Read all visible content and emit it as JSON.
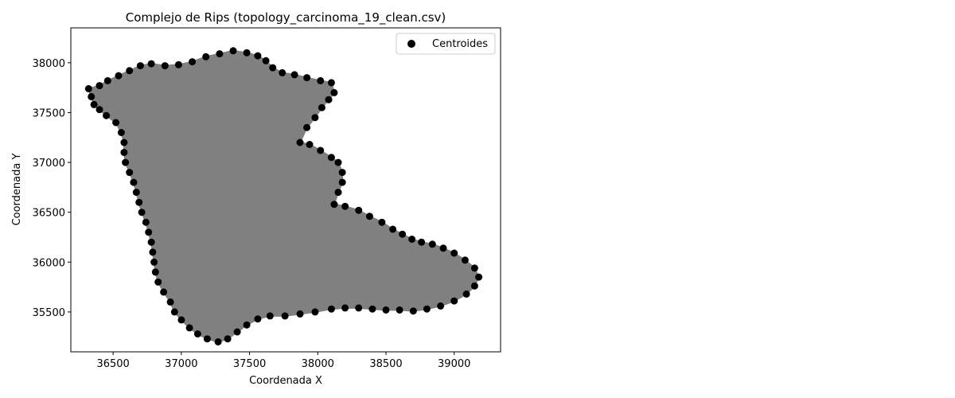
{
  "chart_data": {
    "type": "scatter",
    "title": "Complejo de Rips (topology_carcinoma_19_clean.csv)",
    "xlabel": "Coordenada X",
    "ylabel": "Coordenada Y",
    "xlim": [
      36190,
      39340
    ],
    "ylim": [
      35100,
      38350
    ],
    "xticks": [
      36500,
      37000,
      37500,
      38000,
      38500,
      39000
    ],
    "yticks": [
      35500,
      36000,
      36500,
      37000,
      37500,
      38000
    ],
    "grid": false,
    "legend": {
      "position": "top-right",
      "entries": [
        "Centroides"
      ]
    },
    "fill_color": "#808080",
    "point_color": "#000000",
    "series": [
      {
        "name": "Centroides",
        "points": [
          [
            36320,
            37740
          ],
          [
            36340,
            37660
          ],
          [
            36360,
            37580
          ],
          [
            36400,
            37530
          ],
          [
            36450,
            37470
          ],
          [
            36520,
            37400
          ],
          [
            36560,
            37300
          ],
          [
            36580,
            37200
          ],
          [
            36580,
            37100
          ],
          [
            36590,
            37000
          ],
          [
            36620,
            36900
          ],
          [
            36650,
            36800
          ],
          [
            36670,
            36700
          ],
          [
            36690,
            36600
          ],
          [
            36710,
            36500
          ],
          [
            36740,
            36400
          ],
          [
            36760,
            36300
          ],
          [
            36780,
            36200
          ],
          [
            36790,
            36100
          ],
          [
            36800,
            36000
          ],
          [
            36810,
            35900
          ],
          [
            36830,
            35800
          ],
          [
            36870,
            35700
          ],
          [
            36920,
            35600
          ],
          [
            36950,
            35500
          ],
          [
            37000,
            35420
          ],
          [
            37060,
            35340
          ],
          [
            37120,
            35280
          ],
          [
            37190,
            35230
          ],
          [
            37270,
            35200
          ],
          [
            37340,
            35230
          ],
          [
            37410,
            35300
          ],
          [
            37480,
            35370
          ],
          [
            37560,
            35430
          ],
          [
            37650,
            35460
          ],
          [
            37760,
            35460
          ],
          [
            37870,
            35480
          ],
          [
            37980,
            35500
          ],
          [
            38100,
            35530
          ],
          [
            38200,
            35540
          ],
          [
            38300,
            35540
          ],
          [
            38400,
            35530
          ],
          [
            38500,
            35520
          ],
          [
            38600,
            35520
          ],
          [
            38700,
            35510
          ],
          [
            38800,
            35530
          ],
          [
            38900,
            35560
          ],
          [
            39000,
            35610
          ],
          [
            39090,
            35680
          ],
          [
            39150,
            35760
          ],
          [
            39180,
            35850
          ],
          [
            39150,
            35940
          ],
          [
            39080,
            36020
          ],
          [
            39000,
            36090
          ],
          [
            38920,
            36140
          ],
          [
            38840,
            36180
          ],
          [
            38760,
            36200
          ],
          [
            38690,
            36230
          ],
          [
            38620,
            36280
          ],
          [
            38550,
            36330
          ],
          [
            38470,
            36400
          ],
          [
            38380,
            36460
          ],
          [
            38300,
            36520
          ],
          [
            38200,
            36560
          ],
          [
            38120,
            36580
          ],
          [
            38150,
            36700
          ],
          [
            38180,
            36800
          ],
          [
            38180,
            36900
          ],
          [
            38150,
            37000
          ],
          [
            38100,
            37050
          ],
          [
            38020,
            37120
          ],
          [
            37940,
            37180
          ],
          [
            37870,
            37200
          ],
          [
            37920,
            37350
          ],
          [
            37980,
            37450
          ],
          [
            38030,
            37550
          ],
          [
            38080,
            37630
          ],
          [
            38120,
            37700
          ],
          [
            38100,
            37800
          ],
          [
            38020,
            37820
          ],
          [
            37920,
            37850
          ],
          [
            37830,
            37880
          ],
          [
            37740,
            37900
          ],
          [
            37670,
            37950
          ],
          [
            37620,
            38020
          ],
          [
            37560,
            38070
          ],
          [
            37480,
            38100
          ],
          [
            37380,
            38120
          ],
          [
            37280,
            38090
          ],
          [
            37180,
            38060
          ],
          [
            37080,
            38010
          ],
          [
            36980,
            37980
          ],
          [
            36880,
            37970
          ],
          [
            36780,
            37990
          ],
          [
            36700,
            37970
          ],
          [
            36620,
            37920
          ],
          [
            36540,
            37870
          ],
          [
            36460,
            37820
          ],
          [
            36400,
            37770
          ]
        ]
      }
    ]
  }
}
